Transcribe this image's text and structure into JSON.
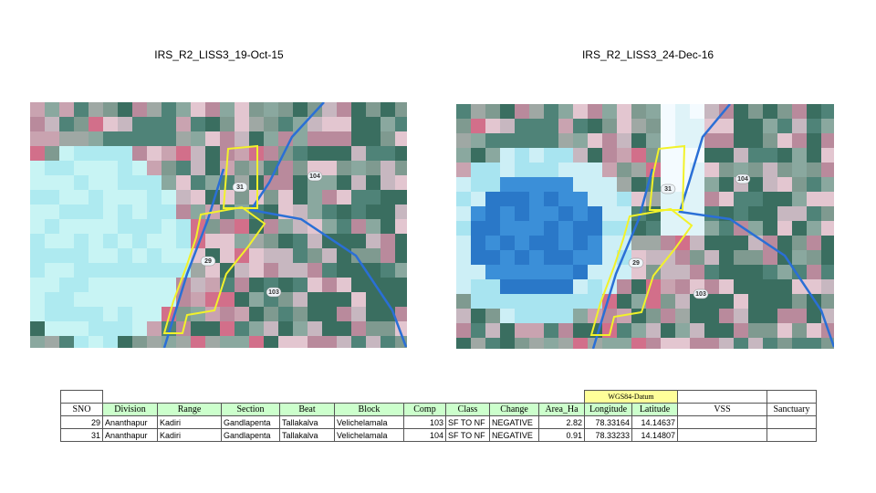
{
  "images": [
    {
      "title": "IRS_R2_LISS3_19-Oct-15",
      "labels": [
        "31",
        "104",
        "29",
        "103"
      ]
    },
    {
      "title": "IRS_R2_LISS3_24-Dec-16",
      "labels": [
        "31",
        "104",
        "29",
        "103"
      ]
    }
  ],
  "table": {
    "group_header": "WGS84-Datum",
    "header": [
      "SNO",
      "Division",
      "Range",
      "Section",
      "Beat",
      "Block",
      "Comp",
      "Class",
      "Change",
      "Area_Ha",
      "Longitude",
      "Latitude",
      "VSS",
      "Sanctuary"
    ],
    "rows": [
      [
        "29",
        "Ananthapur",
        "Kadiri",
        "Gandlapenta",
        "Tallakalva",
        "Velichelamala",
        "103",
        "SF TO NF",
        "NEGATIVE",
        "2.82",
        "78.33164",
        "14.14637"
      ],
      [
        "31",
        "Ananthapur",
        "Kadiri",
        "Gandlapenta",
        "Tallakalva",
        "Velichelamala",
        "104",
        "SF TO NF",
        "NEGATIVE",
        "0.91",
        "78.33233",
        "14.14807"
      ]
    ]
  }
}
